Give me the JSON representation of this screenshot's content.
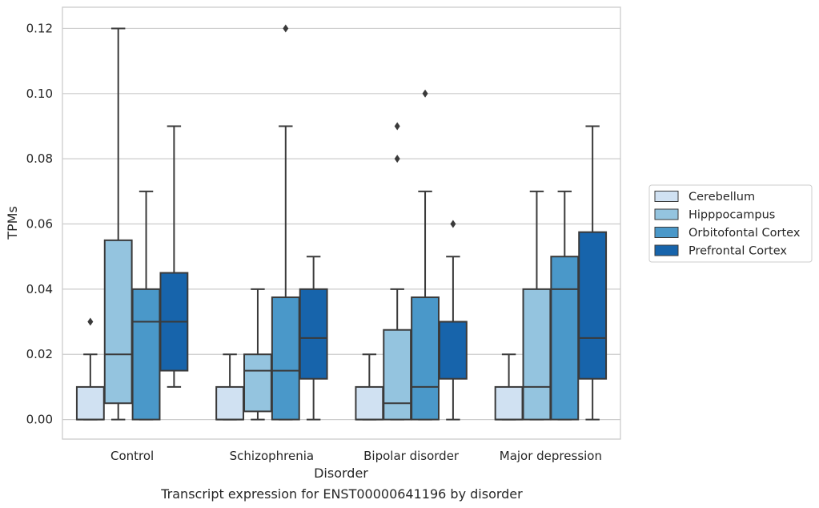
{
  "chart_data": {
    "type": "box",
    "xlabel": "Disorder",
    "ylabel": "TPMs",
    "caption": "Transcript expression for ENST00000641196 by disorder",
    "ylim": [
      -0.006,
      0.1265
    ],
    "yticks": [
      0.0,
      0.02,
      0.04,
      0.06,
      0.08,
      0.1,
      0.12
    ],
    "ytick_labels": [
      "0.00",
      "0.02",
      "0.04",
      "0.06",
      "0.08",
      "0.10",
      "0.12"
    ],
    "grid": true,
    "legend_position": "right",
    "categories": [
      "Control",
      "Schizophrenia",
      "Bipolar disorder",
      "Major depression"
    ],
    "series": [
      {
        "name": "Cerebellum",
        "color": "#d0e1f2",
        "boxes": [
          {
            "q1": 0.0,
            "median": 0.0,
            "q3": 0.01,
            "whislo": 0.0,
            "whishi": 0.02,
            "fliers": [
              0.03
            ]
          },
          {
            "q1": 0.0,
            "median": 0.0,
            "q3": 0.01,
            "whislo": 0.0,
            "whishi": 0.02,
            "fliers": []
          },
          {
            "q1": 0.0,
            "median": 0.0,
            "q3": 0.01,
            "whislo": 0.0,
            "whishi": 0.02,
            "fliers": []
          },
          {
            "q1": 0.0,
            "median": 0.0,
            "q3": 0.01,
            "whislo": 0.0,
            "whishi": 0.02,
            "fliers": []
          }
        ]
      },
      {
        "name": "Hipppocampus",
        "color": "#94c4df",
        "boxes": [
          {
            "q1": 0.005,
            "median": 0.02,
            "q3": 0.055,
            "whislo": 0.0,
            "whishi": 0.12,
            "fliers": []
          },
          {
            "q1": 0.0025,
            "median": 0.015,
            "q3": 0.02,
            "whislo": 0.0,
            "whishi": 0.04,
            "fliers": []
          },
          {
            "q1": 0.0,
            "median": 0.005,
            "q3": 0.0275,
            "whislo": 0.0,
            "whishi": 0.04,
            "fliers": [
              0.08,
              0.09
            ]
          },
          {
            "q1": 0.0,
            "median": 0.01,
            "q3": 0.04,
            "whislo": 0.0,
            "whishi": 0.07,
            "fliers": []
          }
        ]
      },
      {
        "name": "Orbitofontal Cortex",
        "color": "#4a98c9",
        "boxes": [
          {
            "q1": 0.0,
            "median": 0.03,
            "q3": 0.04,
            "whislo": 0.0,
            "whishi": 0.07,
            "fliers": []
          },
          {
            "q1": 0.0,
            "median": 0.015,
            "q3": 0.0375,
            "whislo": 0.0,
            "whishi": 0.09,
            "fliers": [
              0.12
            ]
          },
          {
            "q1": 0.0,
            "median": 0.01,
            "q3": 0.0375,
            "whislo": 0.0,
            "whishi": 0.07,
            "fliers": [
              0.1
            ]
          },
          {
            "q1": 0.0,
            "median": 0.04,
            "q3": 0.05,
            "whislo": 0.0,
            "whishi": 0.07,
            "fliers": []
          }
        ]
      },
      {
        "name": "Prefrontal Cortex",
        "color": "#1764ab",
        "boxes": [
          {
            "q1": 0.015,
            "median": 0.03,
            "q3": 0.045,
            "whislo": 0.01,
            "whishi": 0.09,
            "fliers": []
          },
          {
            "q1": 0.0125,
            "median": 0.025,
            "q3": 0.04,
            "whislo": 0.0,
            "whishi": 0.05,
            "fliers": []
          },
          {
            "q1": 0.0125,
            "median": 0.03,
            "q3": 0.03,
            "whislo": 0.0,
            "whishi": 0.05,
            "fliers": [
              0.06
            ]
          },
          {
            "q1": 0.0125,
            "median": 0.025,
            "q3": 0.0575,
            "whislo": 0.0,
            "whishi": 0.09,
            "fliers": []
          }
        ]
      }
    ]
  }
}
